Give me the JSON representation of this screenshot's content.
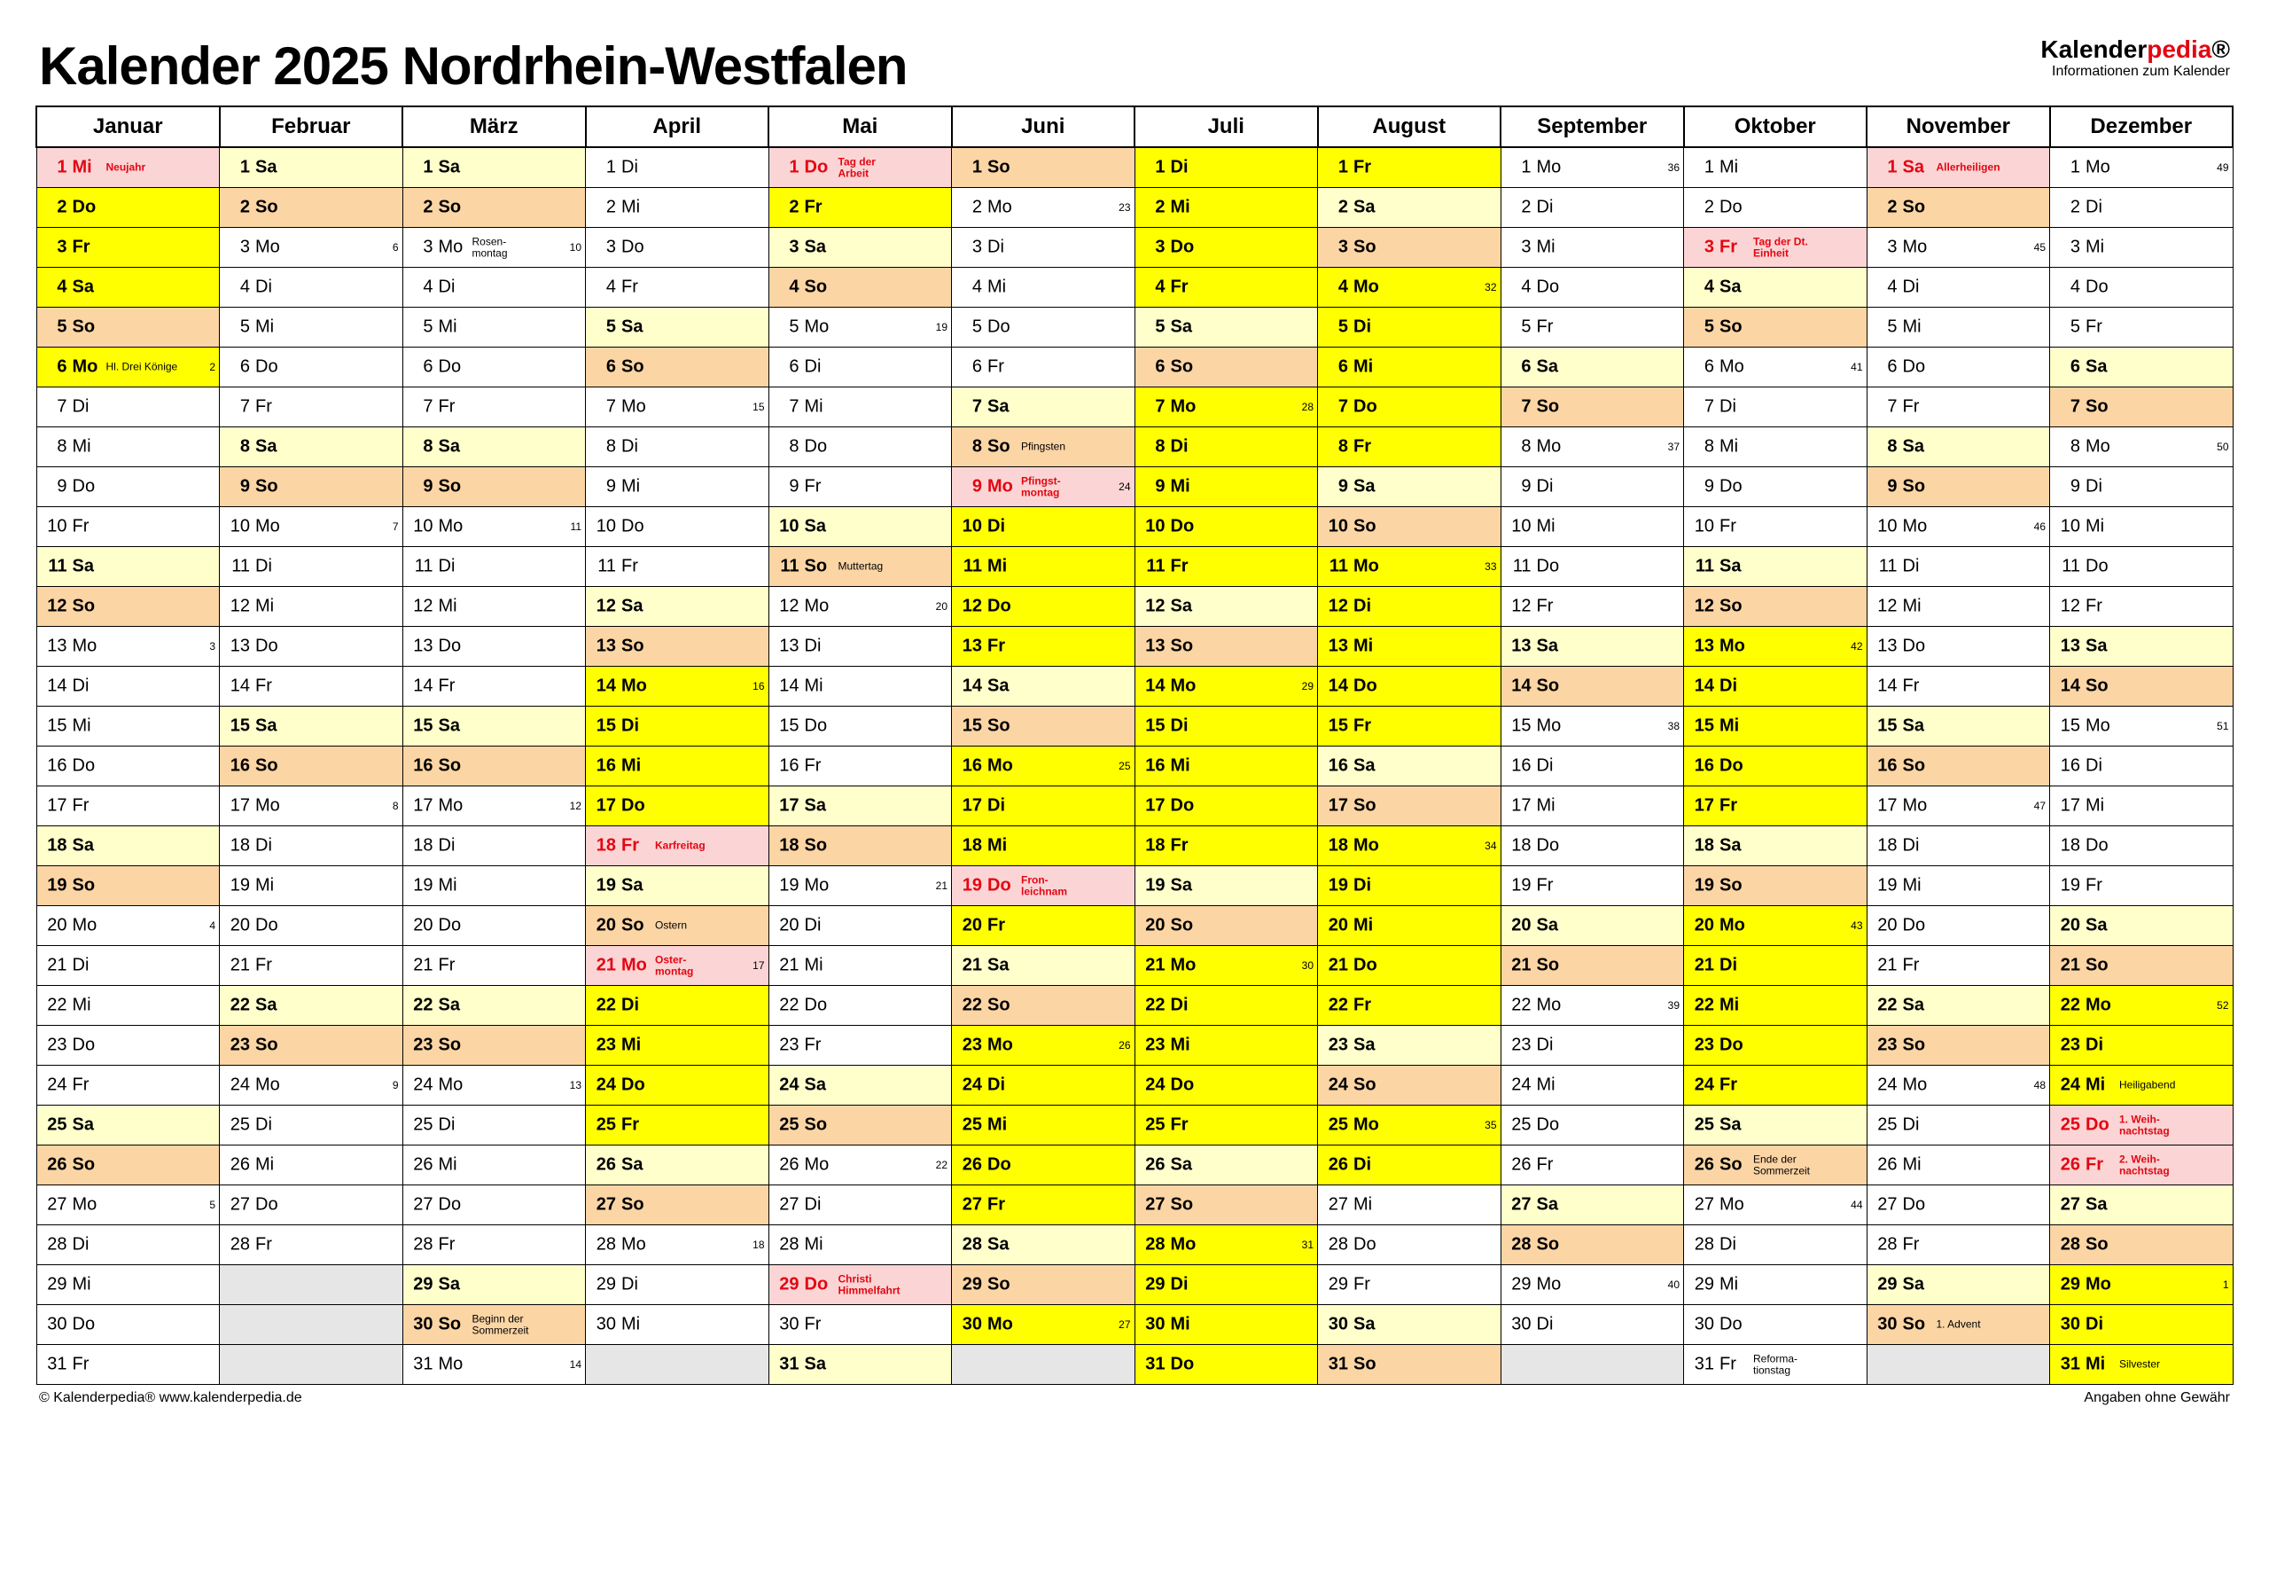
{
  "title": "Kalender 2025 Nordrhein-Westfalen",
  "brand": {
    "name_black": "Kalender",
    "name_red": "pedia",
    "sub": "Informationen zum Kalender",
    "marker": "®"
  },
  "footer": {
    "left": "© Kalenderpedia®   www.kalenderpedia.de",
    "right": "Angaben ohne Gewähr"
  },
  "colors": {
    "yellow": "#ffff00",
    "lyellow": "#ffffcc",
    "orange": "#fcd5a5",
    "pink": "#fbd5d5",
    "grey": "#e6e6e6",
    "red": "#e30613",
    "border": "#000000",
    "white": "#ffffff"
  },
  "fonts": {
    "title": 60,
    "month_header": 24,
    "day": 20,
    "note": 12,
    "week": 12,
    "footer": 16,
    "brand": 28,
    "brand_sub": 16
  },
  "months": [
    "Januar",
    "Februar",
    "März",
    "April",
    "Mai",
    "Juni",
    "Juli",
    "August",
    "September",
    "Oktober",
    "November",
    "Dezember"
  ],
  "rows": 31,
  "weekday_labels": [
    "Mo",
    "Di",
    "Mi",
    "Do",
    "Fr",
    "Sa",
    "So"
  ],
  "first_weekday_index": [
    2,
    5,
    5,
    1,
    3,
    6,
    1,
    4,
    0,
    2,
    5,
    0
  ],
  "days_in_month": [
    31,
    28,
    31,
    30,
    31,
    30,
    31,
    31,
    30,
    31,
    30,
    31
  ],
  "week1_monday": "2024-12-30",
  "holidays": {
    "0": {
      "1": {
        "t": "Neujahr",
        "c": "pink"
      },
      "6": {
        "t": "Hl. Drei Könige",
        "c": "yellow"
      }
    },
    "3": {
      "18": {
        "t": "Karfreitag",
        "c": "pink"
      },
      "20": {
        "t": "Ostern",
        "c": "orange"
      },
      "21": {
        "t": "Oster-\nmontag",
        "c": "pink"
      }
    },
    "2": {
      "3": {
        "t": "Rosen-\nmontag",
        "c": ""
      },
      "30": {
        "t": "Beginn der\nSommerzeit",
        "c": "orange"
      }
    },
    "4": {
      "1": {
        "t": "Tag der\nArbeit",
        "c": "pink"
      },
      "11": {
        "t": "Muttertag",
        "c": "orange"
      },
      "29": {
        "t": "Christi\nHimmelfahrt",
        "c": "pink"
      }
    },
    "5": {
      "8": {
        "t": "Pfingsten",
        "c": "orange"
      },
      "9": {
        "t": "Pfingst-\nmontag",
        "c": "pink"
      },
      "19": {
        "t": "Fron-\nleichnam",
        "c": "pink"
      }
    },
    "9": {
      "3": {
        "t": "Tag der Dt.\nEinheit",
        "c": "pink"
      },
      "26": {
        "t": "Ende der\nSommerzeit",
        "c": "orange"
      },
      "31": {
        "t": "Reforma-\ntionstag",
        "c": ""
      }
    },
    "10": {
      "1": {
        "t": "Allerheiligen",
        "c": "pink"
      },
      "30": {
        "t": "1. Advent",
        "c": "orange"
      }
    },
    "11": {
      "24": {
        "t": "Heiligabend",
        "c": "yellow"
      },
      "25": {
        "t": "1. Weih-\nnachtstag",
        "c": "pink"
      },
      "26": {
        "t": "2. Weih-\nnachtstag",
        "c": "pink"
      },
      "31": {
        "t": "Silvester",
        "c": "yellow"
      }
    }
  },
  "vacation_yellow": {
    "0": [
      2,
      3,
      4,
      6
    ],
    "3": [
      14,
      15,
      16,
      17,
      22,
      23,
      24,
      25
    ],
    "4": [
      2
    ],
    "5": [
      10,
      11,
      12,
      13,
      16,
      17,
      18,
      19,
      20,
      23,
      24,
      25,
      26,
      27,
      30
    ],
    "6": [
      1,
      2,
      3,
      4,
      7,
      8,
      9,
      10,
      11,
      14,
      15,
      16,
      17,
      18,
      21,
      22,
      23,
      24,
      25,
      28,
      29,
      30,
      31
    ],
    "7": [
      1,
      4,
      5,
      6,
      7,
      8,
      11,
      12,
      13,
      14,
      15,
      18,
      19,
      20,
      21,
      22,
      25,
      26
    ],
    "9": [
      13,
      14,
      15,
      16,
      17,
      20,
      21,
      22,
      23,
      24
    ],
    "11": [
      22,
      23,
      24,
      29,
      30,
      31
    ]
  }
}
